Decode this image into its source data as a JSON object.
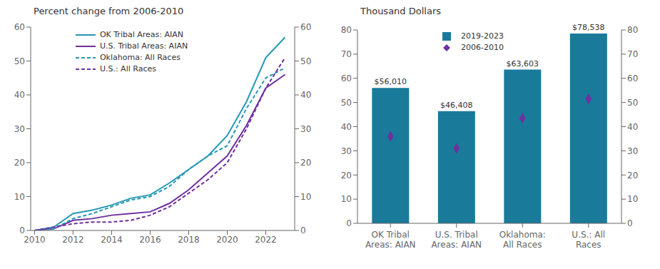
{
  "chart_data": [
    {
      "type": "line",
      "title": "Percent change from 2006-2010",
      "x": [
        2010,
        2011,
        2012,
        2013,
        2014,
        2015,
        2016,
        2017,
        2018,
        2019,
        2020,
        2021,
        2022,
        2023
      ],
      "series": [
        {
          "name": "OK Tribal Areas: AIAN",
          "color": "#2598b6",
          "line_style": "solid",
          "values": [
            0,
            1.0,
            5.0,
            6.0,
            7.5,
            9.5,
            10.5,
            14.0,
            18.0,
            22.0,
            28.0,
            38.0,
            51.0,
            57.0
          ]
        },
        {
          "name": "U.S. Tribal Areas: AIAN",
          "color": "#7030a0",
          "line_style": "solid",
          "values": [
            0,
            0.5,
            3.0,
            3.5,
            4.5,
            5.0,
            5.5,
            8.0,
            12.0,
            17.0,
            22.0,
            31.0,
            42.0,
            46.0
          ]
        },
        {
          "name": "Oklahoma: All Races",
          "color": "#2598b6",
          "line_style": "dashed",
          "values": [
            0,
            0.5,
            3.5,
            5.0,
            7.0,
            9.0,
            10.0,
            13.0,
            18.0,
            22.0,
            25.0,
            36.0,
            45.0,
            48.0
          ]
        },
        {
          "name": "U.S.: All Races",
          "color": "#7030a0",
          "line_style": "dashed",
          "values": [
            0,
            1.0,
            2.0,
            2.5,
            2.5,
            3.0,
            4.5,
            7.0,
            11.0,
            15.0,
            20.0,
            30.0,
            42.0,
            51.0
          ]
        }
      ],
      "xlim": [
        2009.8,
        2023.5
      ],
      "xticks": [
        2010,
        2012,
        2014,
        2016,
        2018,
        2020,
        2022
      ],
      "ylim": [
        0,
        60
      ],
      "yticks": [
        0,
        10,
        20,
        30,
        40,
        50,
        60
      ],
      "y2lim": [
        0,
        60
      ],
      "y2ticks": [
        0,
        10,
        20,
        30,
        40,
        50,
        60
      ],
      "grid": false,
      "legend": "upper left"
    },
    {
      "type": "bar",
      "title": "Thousand Dollars",
      "categories": [
        "OK Tribal\nAreas: AIAN",
        "U.S. Tribal\nAreas: AIAN",
        "Oklahoma:\nAll Races",
        "U.S.: All\nRaces"
      ],
      "series": [
        {
          "name": "2019-2023",
          "type": "bar",
          "color": "#1a7a9a",
          "values": [
            56.01,
            46.408,
            63.603,
            78.538
          ],
          "value_labels": [
            "$56,010",
            "$46,408",
            "$63,603",
            "$78,538"
          ]
        },
        {
          "name": "2006-2010",
          "type": "scatter",
          "marker": "diamond",
          "color": "#7030a0",
          "values": [
            36.0,
            31.0,
            43.5,
            51.5
          ]
        }
      ],
      "ylim": [
        0,
        80
      ],
      "yticks": [
        0,
        10,
        20,
        30,
        40,
        50,
        60,
        70,
        80
      ],
      "y2lim": [
        0,
        80
      ],
      "y2ticks": [
        0,
        10,
        20,
        30,
        40,
        50,
        60,
        70,
        80
      ],
      "data_labels": true,
      "grid": false,
      "legend": "upper left"
    }
  ]
}
